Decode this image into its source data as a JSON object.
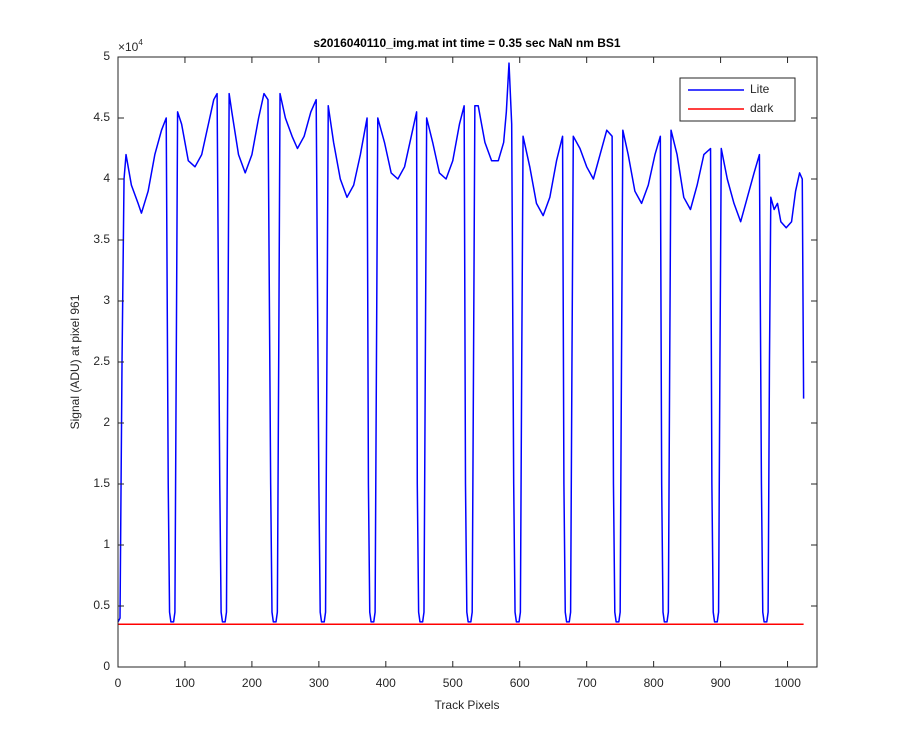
{
  "chart_data": {
    "type": "line",
    "title": "s2016040110_img.mat int time = 0.35 sec  NaN nm BS1",
    "x_label": "Track Pixels",
    "y_label": "Signal (ADU) at pixel 961",
    "y_multiplier": {
      "base": "×10",
      "exponent": "4"
    },
    "xlim": [
      0,
      1044
    ],
    "ylim": [
      0,
      5
    ],
    "xticks": [
      0,
      100,
      200,
      300,
      400,
      500,
      600,
      700,
      800,
      900,
      1000
    ],
    "yticks": [
      0,
      0.5,
      1,
      1.5,
      2,
      2.5,
      3,
      3.5,
      4,
      4.5,
      5
    ],
    "legend": "top-right",
    "series": [
      {
        "name": "Lite",
        "color": "#0000ff",
        "x": [
          0,
          3,
          6,
          9,
          12,
          20,
          30,
          35,
          45,
          55,
          65,
          72,
          75,
          77,
          79,
          83,
          85,
          87,
          89,
          95,
          105,
          115,
          125,
          135,
          143,
          148,
          152,
          154,
          156,
          160,
          162,
          164,
          166,
          170,
          180,
          190,
          200,
          210,
          218,
          224,
          228,
          230,
          232,
          236,
          238,
          240,
          242,
          250,
          260,
          268,
          278,
          288,
          296,
          300,
          302,
          304,
          308,
          310,
          312,
          314,
          322,
          332,
          342,
          352,
          362,
          372,
          374,
          376,
          378,
          382,
          384,
          386,
          388,
          398,
          408,
          418,
          428,
          438,
          446,
          447,
          449,
          451,
          455,
          457,
          459,
          461,
          470,
          480,
          490,
          500,
          510,
          517,
          519,
          521,
          523,
          527,
          529,
          531,
          533,
          538,
          548,
          558,
          568,
          576,
          580,
          584,
          588,
          591,
          593,
          595,
          599,
          601,
          603,
          605,
          615,
          625,
          635,
          645,
          655,
          664,
          666,
          668,
          670,
          674,
          676,
          678,
          680,
          690,
          700,
          710,
          720,
          730,
          738,
          740,
          742,
          744,
          748,
          750,
          752,
          754,
          762,
          772,
          782,
          792,
          802,
          810,
          812,
          814,
          816,
          820,
          822,
          824,
          826,
          835,
          845,
          855,
          865,
          875,
          885,
          887,
          889,
          891,
          895,
          897,
          899,
          901,
          910,
          920,
          930,
          940,
          950,
          958,
          961,
          963,
          965,
          969,
          971,
          973,
          975,
          980,
          985,
          990,
          998,
          1006,
          1012,
          1018,
          1022,
          1024
        ],
        "values": [
          0.37,
          0.4,
          2.5,
          4.0,
          4.2,
          3.95,
          3.8,
          3.72,
          3.9,
          4.2,
          4.4,
          4.5,
          1.5,
          0.45,
          0.37,
          0.37,
          0.45,
          2.5,
          4.55,
          4.45,
          4.15,
          4.1,
          4.2,
          4.45,
          4.65,
          4.7,
          1.5,
          0.45,
          0.37,
          0.37,
          0.45,
          2.5,
          4.7,
          4.55,
          4.2,
          4.05,
          4.2,
          4.5,
          4.7,
          4.65,
          1.5,
          0.45,
          0.37,
          0.37,
          0.45,
          2.5,
          4.7,
          4.5,
          4.35,
          4.25,
          4.35,
          4.55,
          4.65,
          1.5,
          0.45,
          0.37,
          0.37,
          0.45,
          2.5,
          4.6,
          4.3,
          4.0,
          3.85,
          3.95,
          4.2,
          4.5,
          1.5,
          0.45,
          0.37,
          0.37,
          0.45,
          2.5,
          4.5,
          4.3,
          4.05,
          4.0,
          4.1,
          4.35,
          4.55,
          1.5,
          0.45,
          0.37,
          0.37,
          0.45,
          2.5,
          4.5,
          4.3,
          4.05,
          4.0,
          4.15,
          4.45,
          4.6,
          1.5,
          0.45,
          0.37,
          0.37,
          0.45,
          2.5,
          4.6,
          4.6,
          4.3,
          4.15,
          4.15,
          4.3,
          4.55,
          4.95,
          4.45,
          1.5,
          0.45,
          0.37,
          0.37,
          0.45,
          2.5,
          4.35,
          4.1,
          3.8,
          3.7,
          3.85,
          4.15,
          4.35,
          1.5,
          0.45,
          0.37,
          0.37,
          0.45,
          2.5,
          4.35,
          4.25,
          4.1,
          4.0,
          4.2,
          4.4,
          4.35,
          1.5,
          0.45,
          0.37,
          0.37,
          0.45,
          2.5,
          4.4,
          4.2,
          3.9,
          3.8,
          3.95,
          4.2,
          4.35,
          1.5,
          0.45,
          0.37,
          0.37,
          0.45,
          2.5,
          4.4,
          4.2,
          3.85,
          3.75,
          3.95,
          4.2,
          4.25,
          1.5,
          0.45,
          0.37,
          0.37,
          0.45,
          2.5,
          4.25,
          4.0,
          3.8,
          3.65,
          3.85,
          4.05,
          4.2,
          1.5,
          0.45,
          0.37,
          0.37,
          0.45,
          2.5,
          3.85,
          3.75,
          3.8,
          3.65,
          3.6,
          3.65,
          3.9,
          4.05,
          4.0,
          2.2
        ]
      },
      {
        "name": "dark",
        "color": "#ff0000",
        "x": [
          0,
          1024
        ],
        "values": [
          0.35,
          0.35
        ]
      }
    ]
  }
}
